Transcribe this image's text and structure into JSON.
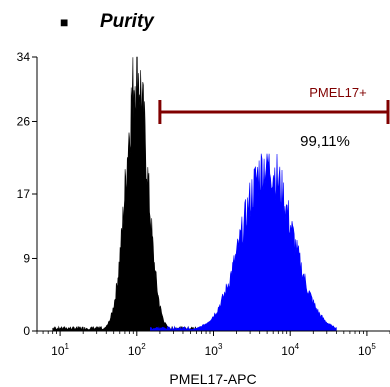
{
  "title": "Purity",
  "bullet": "■",
  "chart_data": {
    "type": "histogram",
    "title": "Purity",
    "xlabel": "PMEL17-APC",
    "ylabel": "",
    "x_scale": "log",
    "xlim": [
      5,
      200000
    ],
    "ylim": [
      0,
      34
    ],
    "y_ticks": [
      0,
      9,
      17,
      26,
      34
    ],
    "x_ticks": [
      {
        "value": 10,
        "base": "10",
        "exp": "1"
      },
      {
        "value": 100,
        "base": "10",
        "exp": "2"
      },
      {
        "value": 1000,
        "base": "10",
        "exp": "3"
      },
      {
        "value": 10000,
        "base": "10",
        "exp": "4"
      },
      {
        "value": 100000,
        "base": "10",
        "exp": "5"
      }
    ],
    "series": [
      {
        "color": "#000000",
        "peak_x": 100,
        "peak_count": 34,
        "log_sigma": 0.14,
        "x_range": [
          8,
          600
        ]
      },
      {
        "color": "#0000ff",
        "peak_x": 5000,
        "peak_count": 22,
        "log_sigma": 0.32,
        "x_range": [
          150,
          40000
        ]
      }
    ],
    "gate": {
      "label": "PMEL17+",
      "percent": "99,11%",
      "x_range": [
        200,
        200000
      ],
      "color": "#800000"
    }
  }
}
